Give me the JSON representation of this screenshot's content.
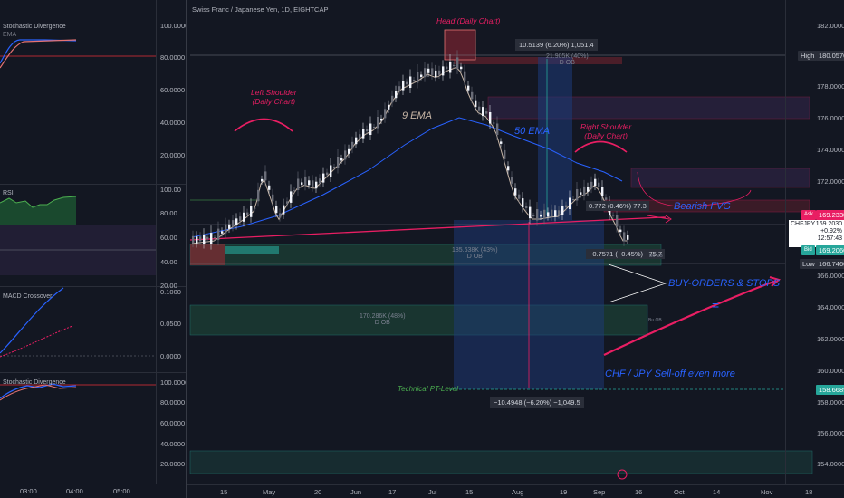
{
  "left_panel": {
    "pane1": {
      "title": "Stochastic Divergence",
      "subtitle": "EMA",
      "ticks": [
        "100.0000",
        "80.0000",
        "60.0000",
        "40.0000",
        "20.0000"
      ]
    },
    "pane2": {
      "title": "RSI",
      "ticks": [
        "100.00",
        "80.00",
        "60.00",
        "40.00",
        "20.00"
      ]
    },
    "pane3": {
      "title": "MACD Crossover",
      "ticks": [
        "0.1000",
        "0.0500",
        "0.0000"
      ]
    },
    "pane4": {
      "title": "Stochastic Divergence",
      "ticks": [
        "100.0000",
        "80.0000",
        "60.0000",
        "40.0000",
        "20.0000"
      ]
    },
    "time_axis": [
      "03:00",
      "04:00",
      "05:00"
    ]
  },
  "main_chart": {
    "title": "Swiss Franc / Japanese Yen, 1D, EIGHTCAP",
    "symbol": "CHFJPY",
    "price_ticks": [
      "182.0000",
      "178.0000",
      "176.0000",
      "174.0000",
      "172.0000",
      "166.0000",
      "164.0000",
      "162.0000",
      "160.0000",
      "158.0000",
      "156.0000",
      "154.0000"
    ],
    "time_axis": [
      "15",
      "May",
      "20",
      "Jun",
      "17",
      "Jul",
      "15",
      "Aug",
      "19",
      "Sep",
      "16",
      "Oct",
      "14",
      "Nov",
      "18"
    ],
    "tags": {
      "high": {
        "label": "High",
        "value": "180.0570"
      },
      "ask": {
        "label": "Ask",
        "value": "169.2330"
      },
      "current": {
        "symbol": "CHFJPY",
        "value": "169.2030",
        "change": "+0.92%",
        "time": "12:57:43"
      },
      "bid": {
        "label": "Bid",
        "value": "169.2060"
      },
      "low": {
        "label": "Low",
        "value": "166.7460"
      },
      "pt": {
        "value": "158.6689"
      }
    },
    "annotations": {
      "head": "Head (Daily Chart)",
      "left_shoulder_1": "Left Shoulder",
      "left_shoulder_2": "(Daily Chart)",
      "right_shoulder_1": "Right Shoulder",
      "right_shoulder_2": "(Daily Chart)",
      "ema9": "9 EMA",
      "ema50": "50 EMA",
      "bearish_fvg": "Bearish FVG",
      "buy_orders": "BUY-ORDERS & STOPS",
      "selloff": "CHF / JPY Sell-off even more",
      "pt_level": "Technical PT-Level",
      "equals": "="
    },
    "measures": {
      "up": "10.5139 (6.20%) 1,051.4",
      "down": "−10.4948 (−6.20%) −1,049.5",
      "small_up": "0.772 (0.46%) 77.3",
      "small_down": "−0.7571 (−0.45%) −75.7"
    },
    "order_blocks": {
      "top": {
        "vol": "21.905K (40%)",
        "label": "D OB"
      },
      "mid": {
        "vol": "185.638K (43%)",
        "label": "D OB",
        "tag": "Bu OB"
      },
      "low": {
        "vol": "170.286K (48%)",
        "label": "D OB",
        "tag": "Bu OB"
      }
    }
  },
  "colors": {
    "bg": "#131722",
    "grid": "#2a2e39",
    "text": "#b2b5be",
    "pink": "#e91e63",
    "blue": "#2962ff",
    "green": "#26a69a",
    "ema9": "#c8b6a6"
  }
}
